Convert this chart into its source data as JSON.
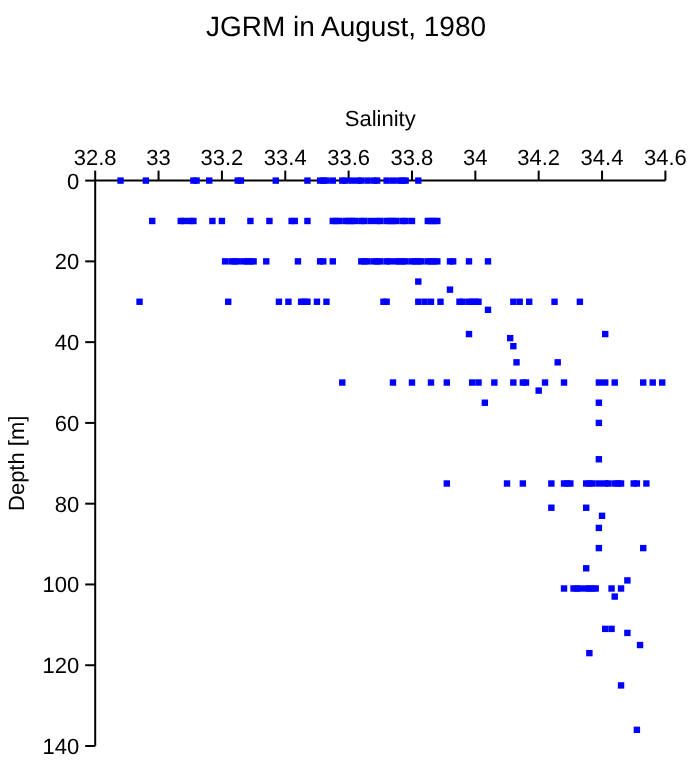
{
  "chart_data": {
    "type": "scatter",
    "title": "JGRM in August, 1980",
    "xlabel": "Salinity",
    "ylabel": "Depth [m]",
    "xlim": [
      32.8,
      34.6
    ],
    "xticks": [
      32.8,
      33,
      33.2,
      33.4,
      33.6,
      33.8,
      34,
      34.2,
      34.4,
      34.6
    ],
    "ylim": [
      140,
      0
    ],
    "yticks": [
      0,
      20,
      40,
      60,
      80,
      100,
      120,
      140
    ],
    "marker": "square",
    "series": [
      {
        "color": "#0000ff",
        "x": [
          32.88,
          32.96,
          33.11,
          33.12,
          33.16,
          33.25,
          33.26,
          33.37,
          33.47,
          33.51,
          33.52,
          33.53,
          33.55,
          33.58,
          33.59,
          33.61,
          33.63,
          33.64,
          33.66,
          33.68,
          33.69,
          33.72,
          33.74,
          33.76,
          33.77,
          33.78,
          33.82,
          32.98,
          33.07,
          33.08,
          33.1,
          33.11,
          33.17,
          33.2,
          33.29,
          33.35,
          33.42,
          33.43,
          33.47,
          33.55,
          33.56,
          33.57,
          33.59,
          33.6,
          33.61,
          33.62,
          33.64,
          33.65,
          33.67,
          33.69,
          33.7,
          33.72,
          33.73,
          33.74,
          33.75,
          33.77,
          33.78,
          33.8,
          33.85,
          33.86,
          33.87,
          33.88,
          33.21,
          33.23,
          33.24,
          33.25,
          33.27,
          33.28,
          33.29,
          33.3,
          33.34,
          33.44,
          33.51,
          33.52,
          33.55,
          33.64,
          33.65,
          33.66,
          33.68,
          33.69,
          33.7,
          33.72,
          33.73,
          33.75,
          33.76,
          33.77,
          33.78,
          33.8,
          33.81,
          33.82,
          33.83,
          33.85,
          33.86,
          33.87,
          33.88,
          33.92,
          33.93,
          33.98,
          34.04,
          33.82,
          33.92,
          32.94,
          33.22,
          33.38,
          33.41,
          33.45,
          33.46,
          33.47,
          33.5,
          33.53,
          33.71,
          33.72,
          33.82,
          33.84,
          33.86,
          33.89,
          33.95,
          33.96,
          33.98,
          33.99,
          34,
          34.01,
          34.12,
          34.14,
          34.17,
          34.25,
          34.33,
          34.04,
          33.98,
          34.41,
          34.11,
          34.12,
          34.13,
          34.26,
          33.58,
          33.74,
          33.8,
          33.86,
          33.91,
          33.99,
          34.01,
          34.06,
          34.12,
          34.15,
          34.16,
          34.22,
          34.28,
          34.39,
          34.41,
          34.44,
          34.53,
          34.56,
          34.59,
          34.03,
          34.2,
          34.39,
          34.39,
          34.39,
          33.91,
          34.1,
          34.15,
          34.24,
          34.28,
          34.29,
          34.3,
          34.35,
          34.36,
          34.37,
          34.39,
          34.41,
          34.42,
          34.44,
          34.45,
          34.46,
          34.5,
          34.51,
          34.54,
          34.24,
          34.35,
          34.4,
          34.39,
          34.39,
          34.53,
          34.35,
          34.48,
          34.28,
          34.31,
          34.32,
          34.33,
          34.35,
          34.36,
          34.37,
          34.38,
          34.43,
          34.46,
          34.44,
          34.41,
          34.43,
          34.48,
          34.52,
          34.36,
          34.46,
          34.51
        ],
        "values": [
          0,
          0,
          0,
          0,
          0,
          0,
          0,
          0,
          0,
          0,
          0,
          0,
          0,
          0,
          0,
          0,
          0,
          0,
          0,
          0,
          0,
          0,
          0,
          0,
          0,
          0,
          0,
          10,
          10,
          10,
          10,
          10,
          10,
          10,
          10,
          10,
          10,
          10,
          10,
          10,
          10,
          10,
          10,
          10,
          10,
          10,
          10,
          10,
          10,
          10,
          10,
          10,
          10,
          10,
          10,
          10,
          10,
          10,
          10,
          10,
          10,
          10,
          20,
          20,
          20,
          20,
          20,
          20,
          20,
          20,
          20,
          20,
          20,
          20,
          20,
          20,
          20,
          20,
          20,
          20,
          20,
          20,
          20,
          20,
          20,
          20,
          20,
          20,
          20,
          20,
          20,
          20,
          20,
          20,
          20,
          20,
          20,
          20,
          20,
          25,
          27,
          30,
          30,
          30,
          30,
          30,
          30,
          30,
          30,
          30,
          30,
          30,
          30,
          30,
          30,
          30,
          30,
          30,
          30,
          30,
          30,
          30,
          30,
          30,
          30,
          30,
          30,
          32,
          38,
          38,
          39,
          41,
          45,
          45,
          50,
          50,
          50,
          50,
          50,
          50,
          50,
          50,
          50,
          50,
          50,
          50,
          50,
          50,
          50,
          50,
          50,
          50,
          50,
          55,
          52,
          55,
          60,
          69,
          75,
          75,
          75,
          75,
          75,
          75,
          75,
          75,
          75,
          75,
          75,
          75,
          75,
          75,
          75,
          75,
          75,
          75,
          75,
          81,
          81,
          83,
          86,
          91,
          91,
          96,
          99,
          101,
          101,
          101,
          101,
          101,
          101,
          101,
          101,
          101,
          101,
          103,
          111,
          111,
          112,
          115,
          117,
          125,
          136
        ]
      }
    ]
  }
}
